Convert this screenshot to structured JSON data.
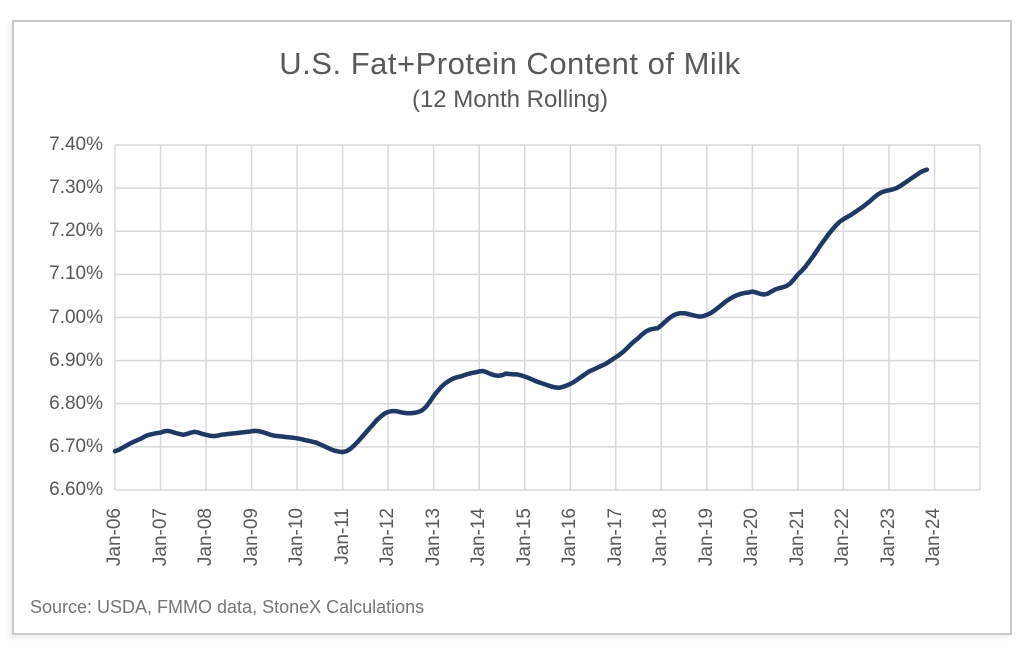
{
  "chart": {
    "title": "U.S. Fat+Protein Content of Milk",
    "subtitle": "(12 Month Rolling)",
    "source": "Source: USDA, FMMO data, StoneX Calculations"
  },
  "chart_data": {
    "type": "line",
    "title": "U.S. Fat+Protein Content of Milk",
    "subtitle": "(12 Month Rolling)",
    "source": "Source: USDA, FMMO data, StoneX Calculations",
    "x_unit": "month",
    "x_start_label": "Jan-06",
    "x_end_of_data_label": "Nov-23",
    "x_tick_labels": [
      "Jan-06",
      "Jan-07",
      "Jan-08",
      "Jan-09",
      "Jan-10",
      "Jan-11",
      "Jan-12",
      "Jan-13",
      "Jan-14",
      "Jan-15",
      "Jan-16",
      "Jan-17",
      "Jan-18",
      "Jan-19",
      "Jan-20",
      "Jan-21",
      "Jan-22",
      "Jan-23",
      "Jan-24"
    ],
    "x_months_per_tick": 12,
    "xlim_months": [
      0,
      228
    ],
    "y_tick_labels": [
      "7.40%",
      "7.30%",
      "7.20%",
      "7.10%",
      "7.00%",
      "6.90%",
      "6.80%",
      "6.70%",
      "6.60%"
    ],
    "ylim": [
      6.6,
      7.4
    ],
    "y_step": 0.1,
    "grid": true,
    "legend_position": "none",
    "line_color": "#1f3864",
    "grid_color": "#d9d9d9",
    "series": [
      {
        "name": "U.S. Fat+Protein Content of Milk (12 Month Rolling, %)",
        "start": "Jan-06",
        "values": [
          6.69,
          6.693,
          6.698,
          6.703,
          6.708,
          6.712,
          6.716,
          6.72,
          6.725,
          6.728,
          6.73,
          6.732,
          6.733,
          6.736,
          6.737,
          6.735,
          6.732,
          6.73,
          6.728,
          6.73,
          6.733,
          6.735,
          6.733,
          6.73,
          6.728,
          6.726,
          6.725,
          6.726,
          6.728,
          6.729,
          6.73,
          6.731,
          6.732,
          6.733,
          6.734,
          6.735,
          6.736,
          6.737,
          6.736,
          6.734,
          6.731,
          6.728,
          6.726,
          6.725,
          6.724,
          6.723,
          6.722,
          6.721,
          6.72,
          6.718,
          6.716,
          6.714,
          6.712,
          6.71,
          6.706,
          6.702,
          6.698,
          6.694,
          6.691,
          6.689,
          6.688,
          6.69,
          6.695,
          6.703,
          6.712,
          6.722,
          6.732,
          6.742,
          6.752,
          6.762,
          6.77,
          6.777,
          6.781,
          6.783,
          6.783,
          6.781,
          6.779,
          6.778,
          6.778,
          6.779,
          6.781,
          6.785,
          6.793,
          6.805,
          6.818,
          6.829,
          6.839,
          6.847,
          6.853,
          6.858,
          6.861,
          6.863,
          6.866,
          6.869,
          6.871,
          6.873,
          6.875,
          6.876,
          6.873,
          6.869,
          6.866,
          6.865,
          6.866,
          6.87,
          6.869,
          6.868,
          6.868,
          6.866,
          6.863,
          6.86,
          6.856,
          6.852,
          6.849,
          6.846,
          6.843,
          6.84,
          6.838,
          6.837,
          6.839,
          6.842,
          6.846,
          6.851,
          6.857,
          6.863,
          6.869,
          6.875,
          6.879,
          6.883,
          6.887,
          6.891,
          6.896,
          6.902,
          6.908,
          6.914,
          6.921,
          6.929,
          6.938,
          6.946,
          6.953,
          6.961,
          6.968,
          6.972,
          6.974,
          6.975,
          6.982,
          6.99,
          6.998,
          7.004,
          7.008,
          7.01,
          7.01,
          7.008,
          7.006,
          7.004,
          7.002,
          7.003,
          7.006,
          7.01,
          7.016,
          7.023,
          7.03,
          7.037,
          7.043,
          7.048,
          7.052,
          7.055,
          7.057,
          7.058,
          7.06,
          7.058,
          7.055,
          7.053,
          7.055,
          7.06,
          7.065,
          7.068,
          7.07,
          7.073,
          7.079,
          7.089,
          7.1,
          7.108,
          7.118,
          7.13,
          7.142,
          7.155,
          7.168,
          7.18,
          7.192,
          7.203,
          7.213,
          7.222,
          7.228,
          7.233,
          7.238,
          7.244,
          7.25,
          7.256,
          7.263,
          7.27,
          7.278,
          7.285,
          7.29,
          7.293,
          7.295,
          7.297,
          7.3,
          7.305,
          7.311,
          7.317,
          7.323,
          7.329,
          7.335,
          7.34,
          7.343
        ]
      }
    ]
  }
}
